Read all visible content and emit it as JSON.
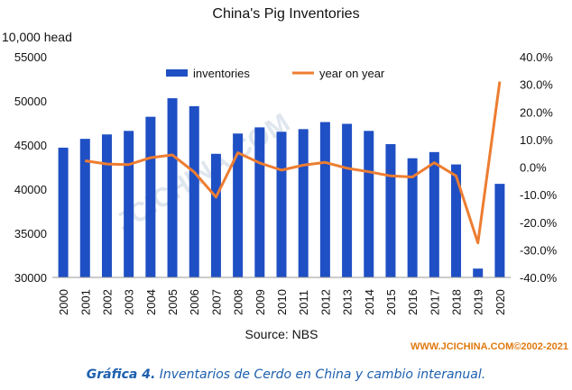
{
  "chart_data": {
    "type": "bar+line",
    "title": "China's Pig Inventories",
    "left_axis_unit": "10,000 head",
    "xlabel": "Source: NBS",
    "watermark": "JCICHINA.COM",
    "credit": "WWW.JCICHINA.COM©2002-2021",
    "categories": [
      "2000",
      "2001",
      "2002",
      "2003",
      "2004",
      "2005",
      "2006",
      "2007",
      "2008",
      "2009",
      "2010",
      "2011",
      "2012",
      "2013",
      "2014",
      "2015",
      "2016",
      "2017",
      "2018",
      "2019",
      "2020"
    ],
    "series": [
      {
        "name": "inventories",
        "type": "bar",
        "axis": "left",
        "color": "#1f4fc4",
        "values": [
          44700,
          45700,
          46200,
          46600,
          48200,
          50300,
          49400,
          44000,
          46300,
          47000,
          46500,
          46800,
          47600,
          47400,
          46600,
          45100,
          43500,
          44200,
          42800,
          31000,
          40600
        ]
      },
      {
        "name": "year on year",
        "type": "line",
        "axis": "right",
        "color": "#ed7d31",
        "values": [
          null,
          2.3,
          1.1,
          0.9,
          3.4,
          4.4,
          -1.8,
          -10.9,
          5.2,
          1.5,
          -1.1,
          0.7,
          1.7,
          -0.4,
          -1.7,
          -3.2,
          -3.6,
          1.6,
          -3.2,
          -27.5,
          31.0
        ]
      }
    ],
    "ylim_left": [
      30000,
      55000
    ],
    "yticks_left": [
      "30000",
      "35000",
      "40000",
      "45000",
      "50000",
      "55000"
    ],
    "ylim_right": [
      -40,
      40
    ],
    "yticks_right": [
      "-40.0%",
      "-30.0%",
      "-20.0%",
      "-10.0%",
      "0.0%",
      "10.0%",
      "20.0%",
      "30.0%",
      "40.0%"
    ],
    "legend_position": "top"
  },
  "caption": {
    "prefix": "Gráfica 4.",
    "text": " Inventarios de Cerdo en China y cambio interanual."
  }
}
